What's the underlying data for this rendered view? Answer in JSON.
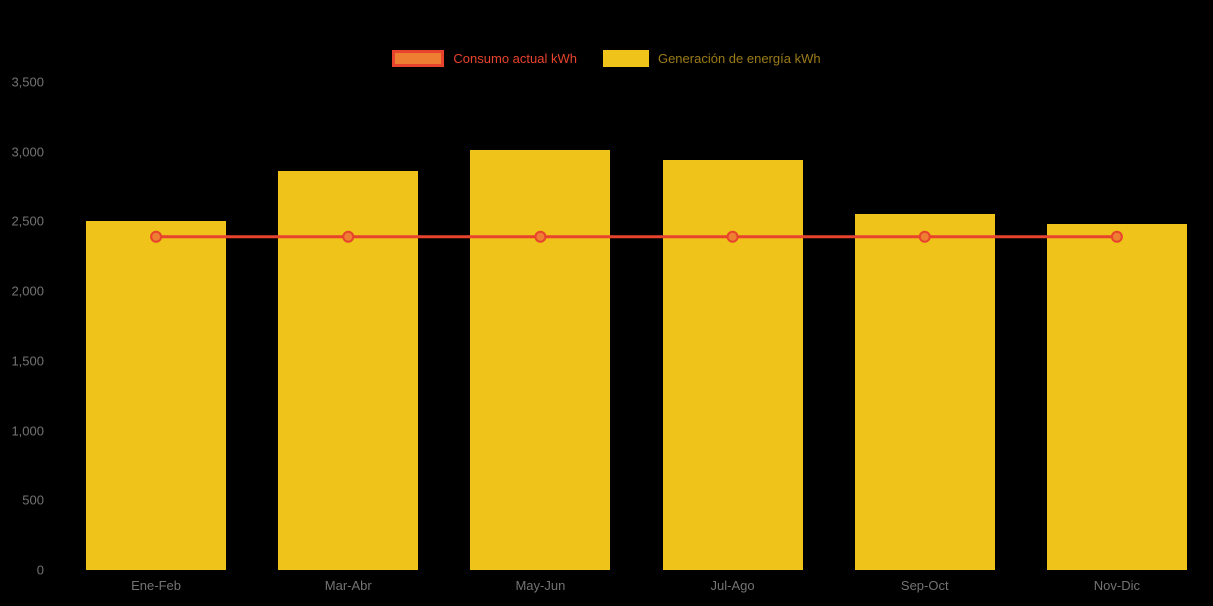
{
  "colors": {
    "background": "#000000",
    "bar": "#EFC319",
    "line": "#E8432C",
    "marker_fill": "#EE7E32",
    "axis_label": "#737373",
    "legend_consumo_text": "#E8432C",
    "legend_generacion_text": "#9A7B16"
  },
  "legend": {
    "items": [
      {
        "label": "Consumo actual kWh",
        "swatch": "line-swatch"
      },
      {
        "label": "Generación de energía kWh",
        "swatch": "bar-swatch"
      }
    ]
  },
  "chart_data": {
    "type": "bar",
    "title": "",
    "categories": [
      "Ene-Feb",
      "Mar-Abr",
      "May-Jun",
      "Jul-Ago",
      "Sep-Oct",
      "Nov-Dic"
    ],
    "series": [
      {
        "name": "Consumo actual kWh",
        "type": "line",
        "color": "#E8432C",
        "values": [
          2390,
          2390,
          2390,
          2390,
          2390,
          2390
        ]
      },
      {
        "name": "Generación de energía kWh",
        "type": "bar",
        "color": "#EFC319",
        "values": [
          2500,
          2860,
          3010,
          2940,
          2550,
          2480
        ]
      }
    ],
    "ylim": [
      0,
      3500
    ],
    "yticks": [
      0,
      500,
      1000,
      1500,
      2000,
      2500,
      3000,
      3500
    ],
    "ytick_labels": [
      "0",
      "500",
      "1,000",
      "1,500",
      "2,000",
      "2,500",
      "3,000",
      "3,500"
    ],
    "grid": false,
    "legend_position": "top"
  }
}
